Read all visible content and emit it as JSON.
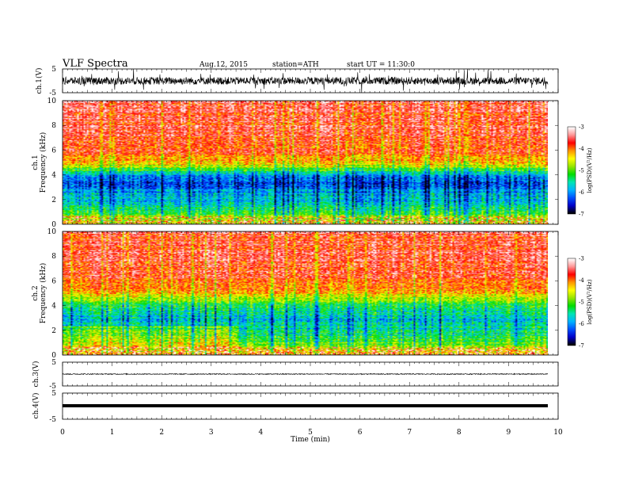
{
  "header": {
    "title": "VLF  Spectra",
    "date": "Aug.12, 2015",
    "station": "station=ATH",
    "start": "start  UT  =    11:30:0"
  },
  "chart_data": [
    {
      "type": "line",
      "panel": "ch1-waveform",
      "ylabel": "ch.1(V)",
      "yticks": [
        "5",
        "-5"
      ],
      "ylim": [
        -5,
        5
      ],
      "xlim": [
        0,
        10
      ],
      "baseline": 0,
      "amplitude_range": [
        -5,
        5
      ]
    },
    {
      "type": "heatmap",
      "panel": "ch1-spectrogram",
      "ylabel_top": "ch.1",
      "ylabel": "Frequency  (kHz)",
      "yticks": [
        "0",
        "2",
        "4",
        "6",
        "8",
        "10"
      ],
      "ylim": [
        0,
        10
      ],
      "xlim": [
        0,
        9.8
      ],
      "colorbar": {
        "label": "log(PSD)(V²/Hz)",
        "ticks": [
          "-3",
          "-4",
          "-5",
          "-6",
          "-7"
        ],
        "range": [
          -7,
          -3
        ]
      },
      "profile_khz_logpsd": [
        [
          0,
          -4.4
        ],
        [
          0.6,
          -4.8
        ],
        [
          1.2,
          -5.4
        ],
        [
          2,
          -5.7
        ],
        [
          2.8,
          -6.0
        ],
        [
          3.6,
          -6.3
        ],
        [
          4.2,
          -5.6
        ],
        [
          4.6,
          -4.8
        ],
        [
          5.2,
          -4.2
        ],
        [
          6,
          -3.8
        ],
        [
          8,
          -3.6
        ],
        [
          10,
          -3.6
        ]
      ]
    },
    {
      "type": "heatmap",
      "panel": "ch2-spectrogram",
      "ylabel_top": "ch.2",
      "ylabel": "Frequency  (kHz)",
      "yticks": [
        "0",
        "2",
        "4",
        "6",
        "8",
        "10"
      ],
      "ylim": [
        0,
        10
      ],
      "xlim": [
        0,
        9.8
      ],
      "colorbar": {
        "label": "log(PSD)(V²/Hz)",
        "ticks": [
          "-3",
          "-4",
          "-5",
          "-6",
          "-7"
        ],
        "range": [
          -7,
          -3
        ]
      },
      "profile_khz_logpsd": [
        [
          0,
          -4.2
        ],
        [
          0.6,
          -4.6
        ],
        [
          1.2,
          -5.2
        ],
        [
          2,
          -5.5
        ],
        [
          2.8,
          -5.7
        ],
        [
          3.6,
          -5.5
        ],
        [
          4.2,
          -5.1
        ],
        [
          4.6,
          -4.6
        ],
        [
          5.2,
          -4.1
        ],
        [
          6,
          -3.8
        ],
        [
          8,
          -3.6
        ],
        [
          10,
          -3.6
        ]
      ]
    },
    {
      "type": "line",
      "panel": "ch3-waveform",
      "ylabel": "ch.3(V)",
      "yticks": [
        "5",
        "-5"
      ],
      "ylim": [
        -5,
        5
      ],
      "xlim": [
        0,
        10
      ],
      "baseline": 0
    },
    {
      "type": "line",
      "panel": "ch4-waveform",
      "ylabel": "ch.4(V)",
      "yticks": [
        "5",
        "-5"
      ],
      "ylim": [
        -5,
        5
      ],
      "xlim": [
        0,
        10
      ],
      "baseline": 0
    }
  ],
  "xaxis": {
    "label": "Time  (min)",
    "ticks": [
      "0",
      "1",
      "2",
      "3",
      "4",
      "5",
      "6",
      "7",
      "8",
      "9",
      "10"
    ],
    "range": [
      0,
      10
    ]
  },
  "colors": {
    "colormap": [
      "#000000",
      "#0000c8",
      "#0050ff",
      "#00b4ff",
      "#00e6b4",
      "#00dc00",
      "#96e600",
      "#ffff00",
      "#ff9600",
      "#ff0000",
      "#ff9696",
      "#ffffff"
    ]
  }
}
